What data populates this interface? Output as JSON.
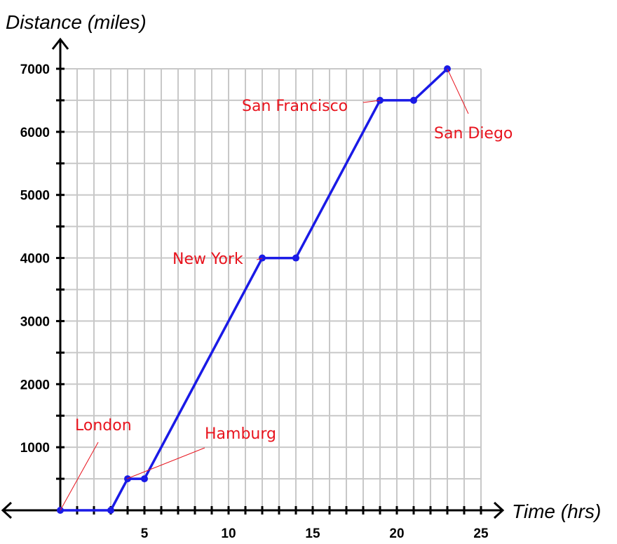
{
  "chart_data": {
    "type": "line",
    "title": "",
    "xlabel": "Time (hrs)",
    "ylabel": "Distance (miles)",
    "xlim": [
      0,
      25
    ],
    "ylim": [
      0,
      7000
    ],
    "x_minor_step": 1,
    "y_minor_step": 500,
    "xticks": [
      5,
      10,
      15,
      20,
      25
    ],
    "yticks": [
      1000,
      2000,
      3000,
      4000,
      5000,
      6000,
      7000
    ],
    "grid": true,
    "series": [
      {
        "name": "",
        "color": "#1a1ae6",
        "points": [
          {
            "x": 0,
            "y": 0
          },
          {
            "x": 3,
            "y": 0
          },
          {
            "x": 4,
            "y": 500
          },
          {
            "x": 5,
            "y": 500
          },
          {
            "x": 12,
            "y": 4000
          },
          {
            "x": 14,
            "y": 4000
          },
          {
            "x": 19,
            "y": 6500
          },
          {
            "x": 21,
            "y": 6500
          },
          {
            "x": 23,
            "y": 7000
          }
        ]
      }
    ],
    "annotations": [
      {
        "text": "London",
        "x": 0,
        "y": 0
      },
      {
        "text": "Hamburg",
        "x": 4,
        "y": 500
      },
      {
        "text": "New York",
        "x": 12,
        "y": 4000
      },
      {
        "text": "San Francisco",
        "x": 19,
        "y": 6500
      },
      {
        "text": "San Diego",
        "x": 23,
        "y": 7000
      }
    ],
    "annotation_color": "#e8141e"
  }
}
